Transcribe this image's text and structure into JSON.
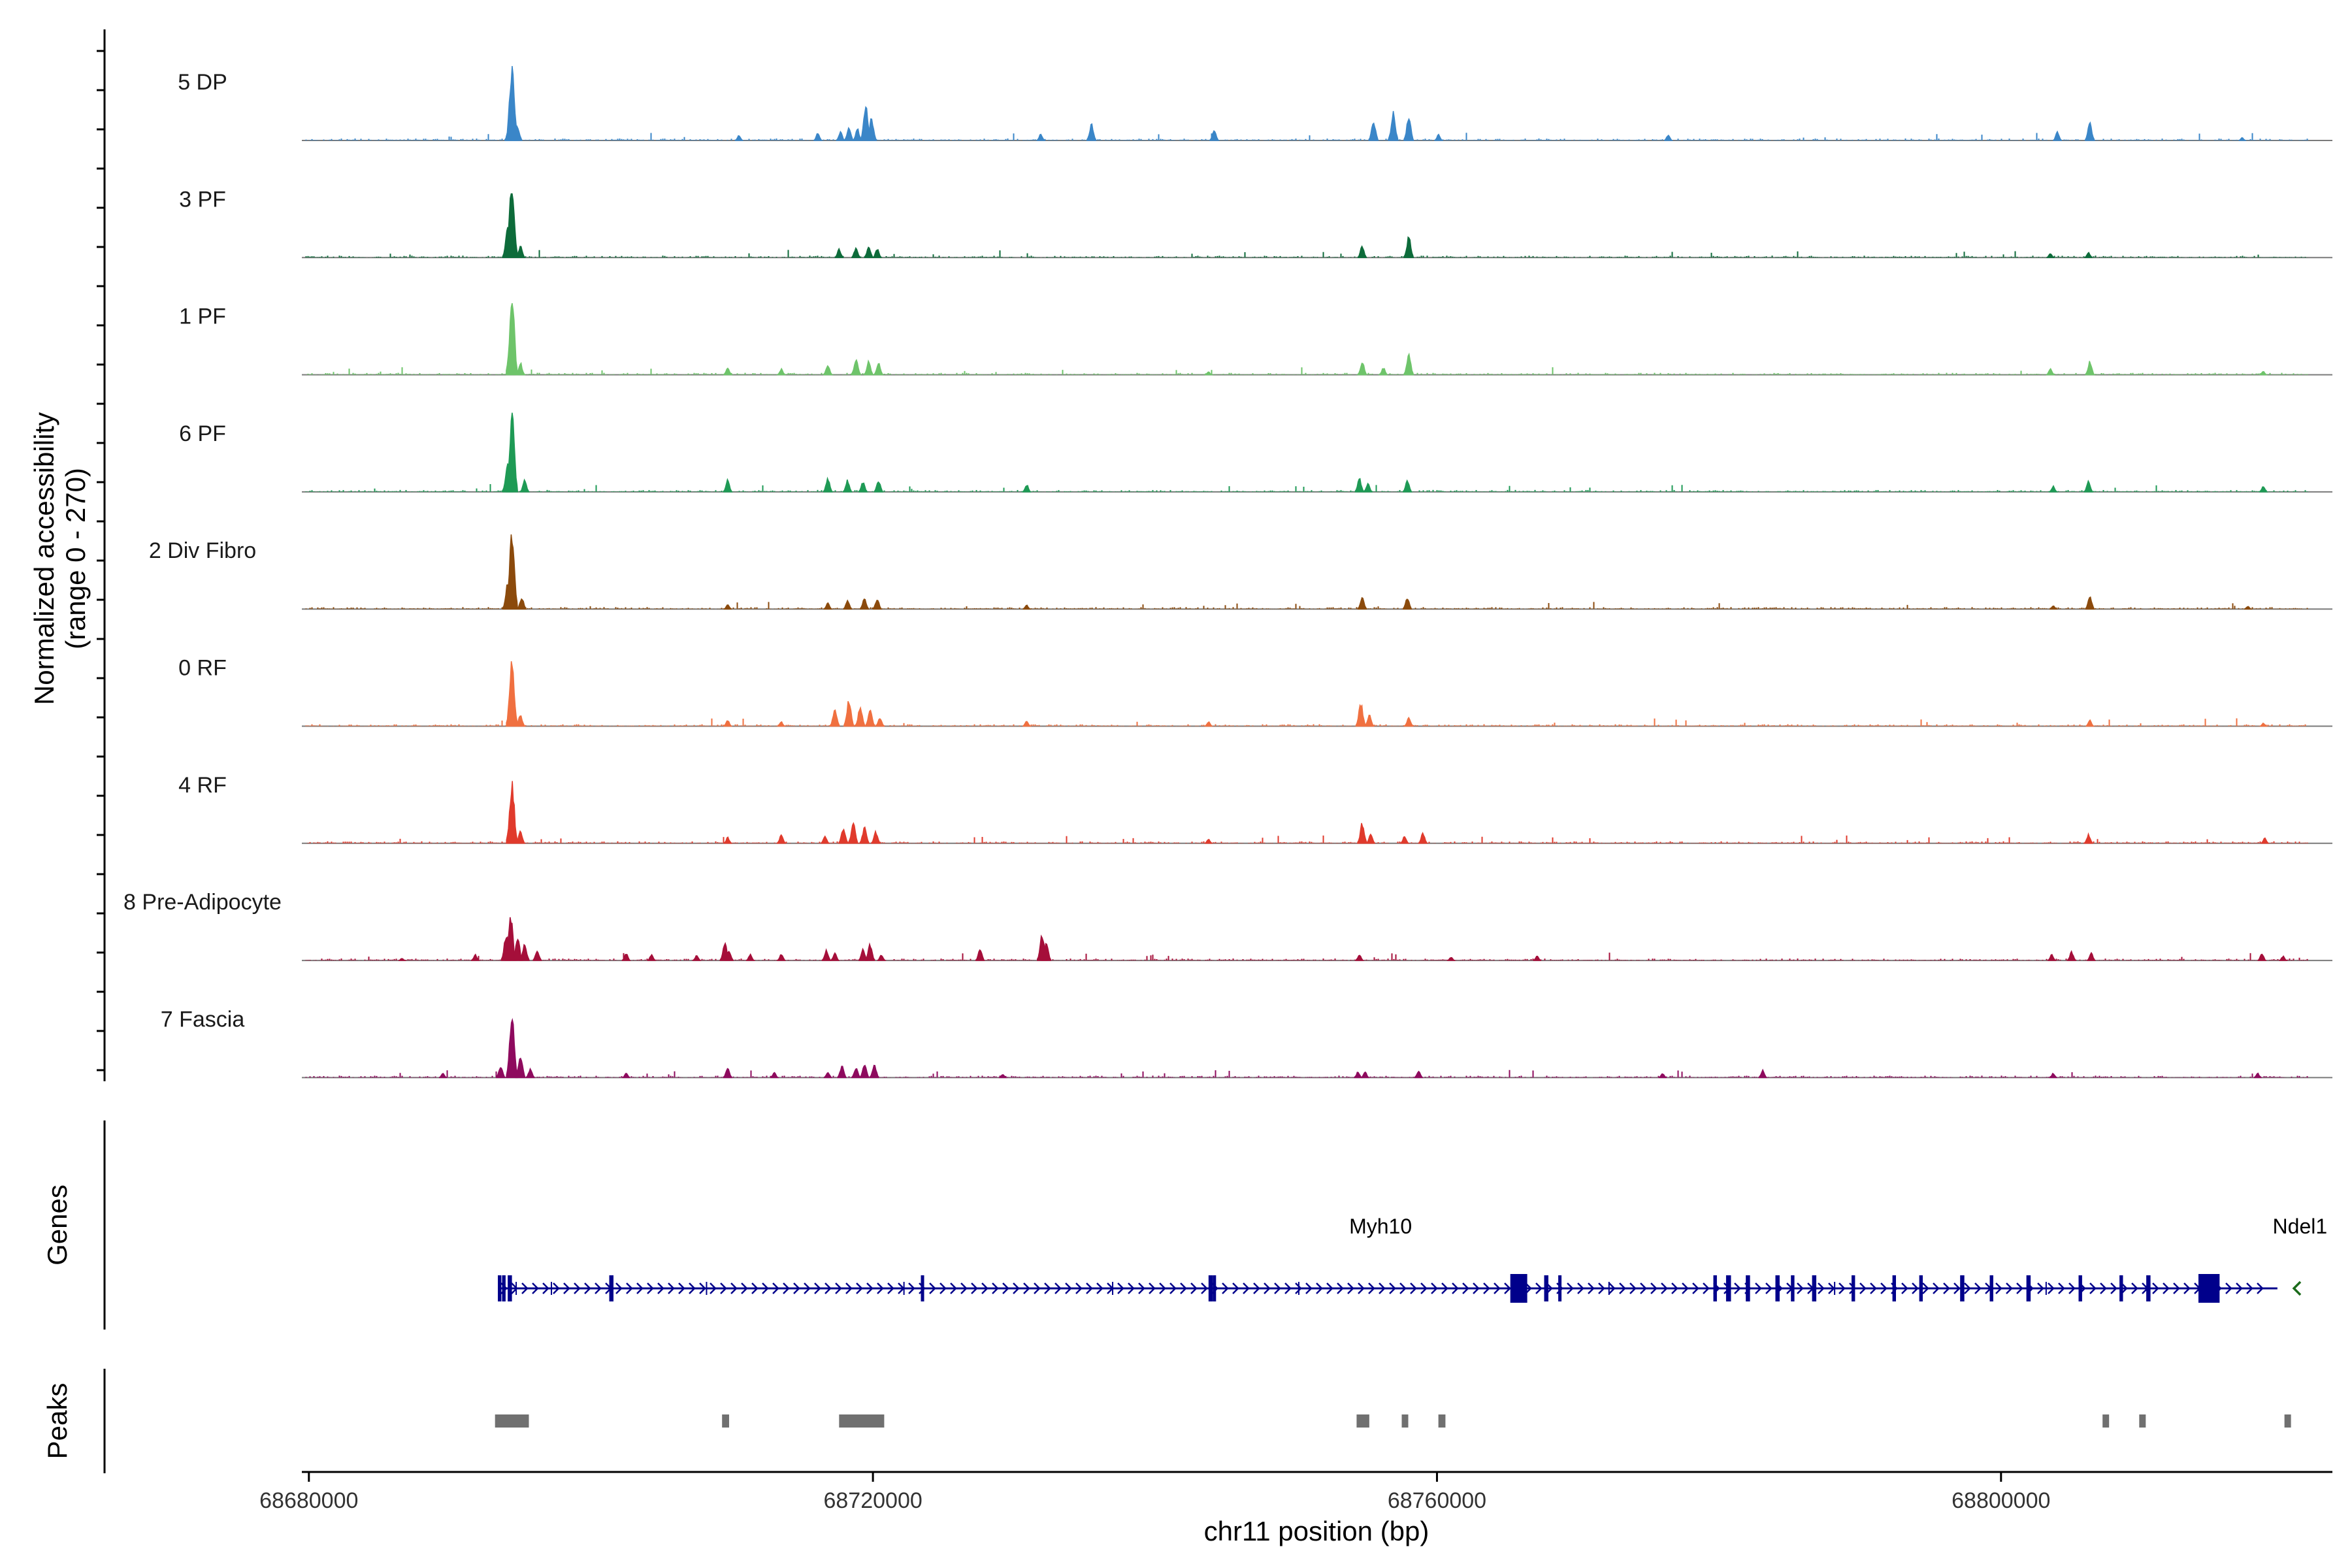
{
  "chart_data": {
    "type": "area",
    "title": "",
    "xlabel": "chr11 position (bp)",
    "ylabel": "Normalized accessibility",
    "ylabel_range": "(range 0 - 270)",
    "ylim": [
      0,
      270
    ],
    "xlim": [
      68679500,
      68823500
    ],
    "x_ticks": [
      68680000,
      68720000,
      68760000,
      68800000
    ],
    "x_tick_labels": [
      "68680000",
      "68720000",
      "68760000",
      "68800000"
    ],
    "tracks": [
      {
        "name": "5 DP",
        "color": "#3A86C8",
        "peaks": [
          [
            68694200,
            44
          ],
          [
            68694400,
            260
          ],
          [
            68694800,
            50
          ],
          [
            68710500,
            18
          ],
          [
            68716100,
            25
          ],
          [
            68717700,
            30
          ],
          [
            68718300,
            45
          ],
          [
            68718900,
            40
          ],
          [
            68719500,
            120
          ],
          [
            68719900,
            75
          ],
          [
            68731900,
            22
          ],
          [
            68735500,
            55
          ],
          [
            68744200,
            40
          ],
          [
            68755500,
            70
          ],
          [
            68756900,
            95
          ],
          [
            68758000,
            80
          ],
          [
            68760100,
            20
          ],
          [
            68776400,
            20
          ],
          [
            68804000,
            30
          ],
          [
            68806300,
            60
          ],
          [
            68817100,
            10
          ]
        ]
      },
      {
        "name": "3 PF",
        "color": "#0D6B3A",
        "peaks": [
          [
            68694100,
            100
          ],
          [
            68694400,
            270
          ],
          [
            68695000,
            40
          ],
          [
            68717600,
            30
          ],
          [
            68718800,
            35
          ],
          [
            68719700,
            40
          ],
          [
            68720300,
            30
          ],
          [
            68754700,
            40
          ],
          [
            68758000,
            70
          ],
          [
            68803500,
            15
          ],
          [
            68806200,
            18
          ]
        ]
      },
      {
        "name": "1 PF",
        "color": "#6EC46A",
        "peaks": [
          [
            68694400,
            270
          ],
          [
            68695000,
            40
          ],
          [
            68709700,
            25
          ],
          [
            68713500,
            20
          ],
          [
            68716800,
            35
          ],
          [
            68718800,
            55
          ],
          [
            68719700,
            45
          ],
          [
            68720400,
            40
          ],
          [
            68743800,
            10
          ],
          [
            68754700,
            45
          ],
          [
            68756200,
            25
          ],
          [
            68758000,
            70
          ],
          [
            68803500,
            20
          ],
          [
            68806300,
            45
          ],
          [
            68818600,
            12
          ]
        ]
      },
      {
        "name": "6 PF",
        "color": "#1E9A55",
        "peaks": [
          [
            68694100,
            110
          ],
          [
            68694400,
            270
          ],
          [
            68695300,
            40
          ],
          [
            68709700,
            40
          ],
          [
            68716800,
            45
          ],
          [
            68718200,
            40
          ],
          [
            68719300,
            35
          ],
          [
            68720400,
            40
          ],
          [
            68730900,
            25
          ],
          [
            68754500,
            45
          ],
          [
            68755100,
            30
          ],
          [
            68757900,
            40
          ],
          [
            68803700,
            20
          ],
          [
            68806200,
            35
          ],
          [
            68818600,
            20
          ]
        ]
      },
      {
        "name": "2 Div Fibro",
        "color": "#8B4A0C",
        "peaks": [
          [
            68694100,
            90
          ],
          [
            68694400,
            270
          ],
          [
            68695100,
            40
          ],
          [
            68709700,
            15
          ],
          [
            68716800,
            22
          ],
          [
            68718200,
            30
          ],
          [
            68719400,
            38
          ],
          [
            68720300,
            35
          ],
          [
            68730900,
            14
          ],
          [
            68754700,
            40
          ],
          [
            68757900,
            38
          ],
          [
            68803700,
            12
          ],
          [
            68806300,
            45
          ],
          [
            68817500,
            10
          ]
        ]
      },
      {
        "name": "0 RF",
        "color": "#F07040",
        "peaks": [
          [
            68694400,
            220
          ],
          [
            68695000,
            40
          ],
          [
            68709700,
            20
          ],
          [
            68713500,
            15
          ],
          [
            68717300,
            60
          ],
          [
            68718300,
            90
          ],
          [
            68719100,
            70
          ],
          [
            68719800,
            55
          ],
          [
            68720500,
            30
          ],
          [
            68730900,
            18
          ],
          [
            68743800,
            15
          ],
          [
            68754600,
            80
          ],
          [
            68755200,
            40
          ],
          [
            68758000,
            30
          ],
          [
            68806300,
            20
          ],
          [
            68818600,
            10
          ]
        ]
      },
      {
        "name": "4 RF",
        "color": "#E03A2C",
        "peaks": [
          [
            68694400,
            210
          ],
          [
            68695000,
            40
          ],
          [
            68709700,
            20
          ],
          [
            68713500,
            30
          ],
          [
            68716600,
            25
          ],
          [
            68717900,
            55
          ],
          [
            68718600,
            70
          ],
          [
            68719400,
            55
          ],
          [
            68720200,
            40
          ],
          [
            68743800,
            15
          ],
          [
            68754700,
            70
          ],
          [
            68755300,
            30
          ],
          [
            68757700,
            25
          ],
          [
            68759000,
            35
          ],
          [
            68806200,
            30
          ],
          [
            68818700,
            18
          ]
        ]
      },
      {
        "name": "8 Pre-Adipocyte",
        "color": "#A50F3A",
        "peaks": [
          [
            68686600,
            8
          ],
          [
            68691800,
            20
          ],
          [
            68694000,
            90
          ],
          [
            68694300,
            160
          ],
          [
            68694800,
            80
          ],
          [
            68695300,
            60
          ],
          [
            68696200,
            35
          ],
          [
            68702500,
            25
          ],
          [
            68704300,
            20
          ],
          [
            68707500,
            18
          ],
          [
            68709500,
            60
          ],
          [
            68709800,
            35
          ],
          [
            68711300,
            20
          ],
          [
            68713500,
            22
          ],
          [
            68716700,
            35
          ],
          [
            68717300,
            25
          ],
          [
            68719300,
            40
          ],
          [
            68719800,
            55
          ],
          [
            68720600,
            20
          ],
          [
            68727600,
            40
          ],
          [
            68732000,
            90
          ],
          [
            68732300,
            60
          ],
          [
            68754500,
            20
          ],
          [
            68761000,
            12
          ],
          [
            68767100,
            15
          ],
          [
            68803600,
            20
          ],
          [
            68805000,
            30
          ],
          [
            68806400,
            25
          ],
          [
            68818500,
            25
          ],
          [
            68820000,
            15
          ]
        ]
      },
      {
        "name": "7 Fascia",
        "color": "#8E0A5E",
        "peaks": [
          [
            68689500,
            15
          ],
          [
            68693600,
            40
          ],
          [
            68694400,
            210
          ],
          [
            68695000,
            80
          ],
          [
            68695700,
            30
          ],
          [
            68702500,
            15
          ],
          [
            68709700,
            35
          ],
          [
            68713000,
            18
          ],
          [
            68716800,
            20
          ],
          [
            68717800,
            40
          ],
          [
            68718800,
            35
          ],
          [
            68719400,
            50
          ],
          [
            68720100,
            45
          ],
          [
            68729200,
            12
          ],
          [
            68754400,
            20
          ],
          [
            68754900,
            20
          ],
          [
            68758700,
            25
          ],
          [
            68776000,
            15
          ],
          [
            68783100,
            25
          ],
          [
            68803700,
            15
          ],
          [
            68818200,
            15
          ]
        ]
      }
    ],
    "genes": [
      {
        "name": "Myh10",
        "strand": "+",
        "start": 68693400,
        "end": 68819600,
        "color": "#00008B"
      },
      {
        "name": "Ndel1",
        "strand": "-",
        "start": 68821000,
        "end": 68821700,
        "color": "#1B6B1B"
      }
    ],
    "peak_regions": [
      [
        68693200,
        68695600
      ],
      [
        68709300,
        68709800
      ],
      [
        68717600,
        68720800
      ],
      [
        68754300,
        68755200
      ],
      [
        68757500,
        68757900
      ],
      [
        68760100,
        68760600
      ],
      [
        68807200,
        68807500
      ],
      [
        68809800,
        68810200
      ],
      [
        68820100,
        68820500
      ]
    ]
  },
  "panels": {
    "genes_label": "Genes",
    "peaks_label": "Peaks"
  }
}
